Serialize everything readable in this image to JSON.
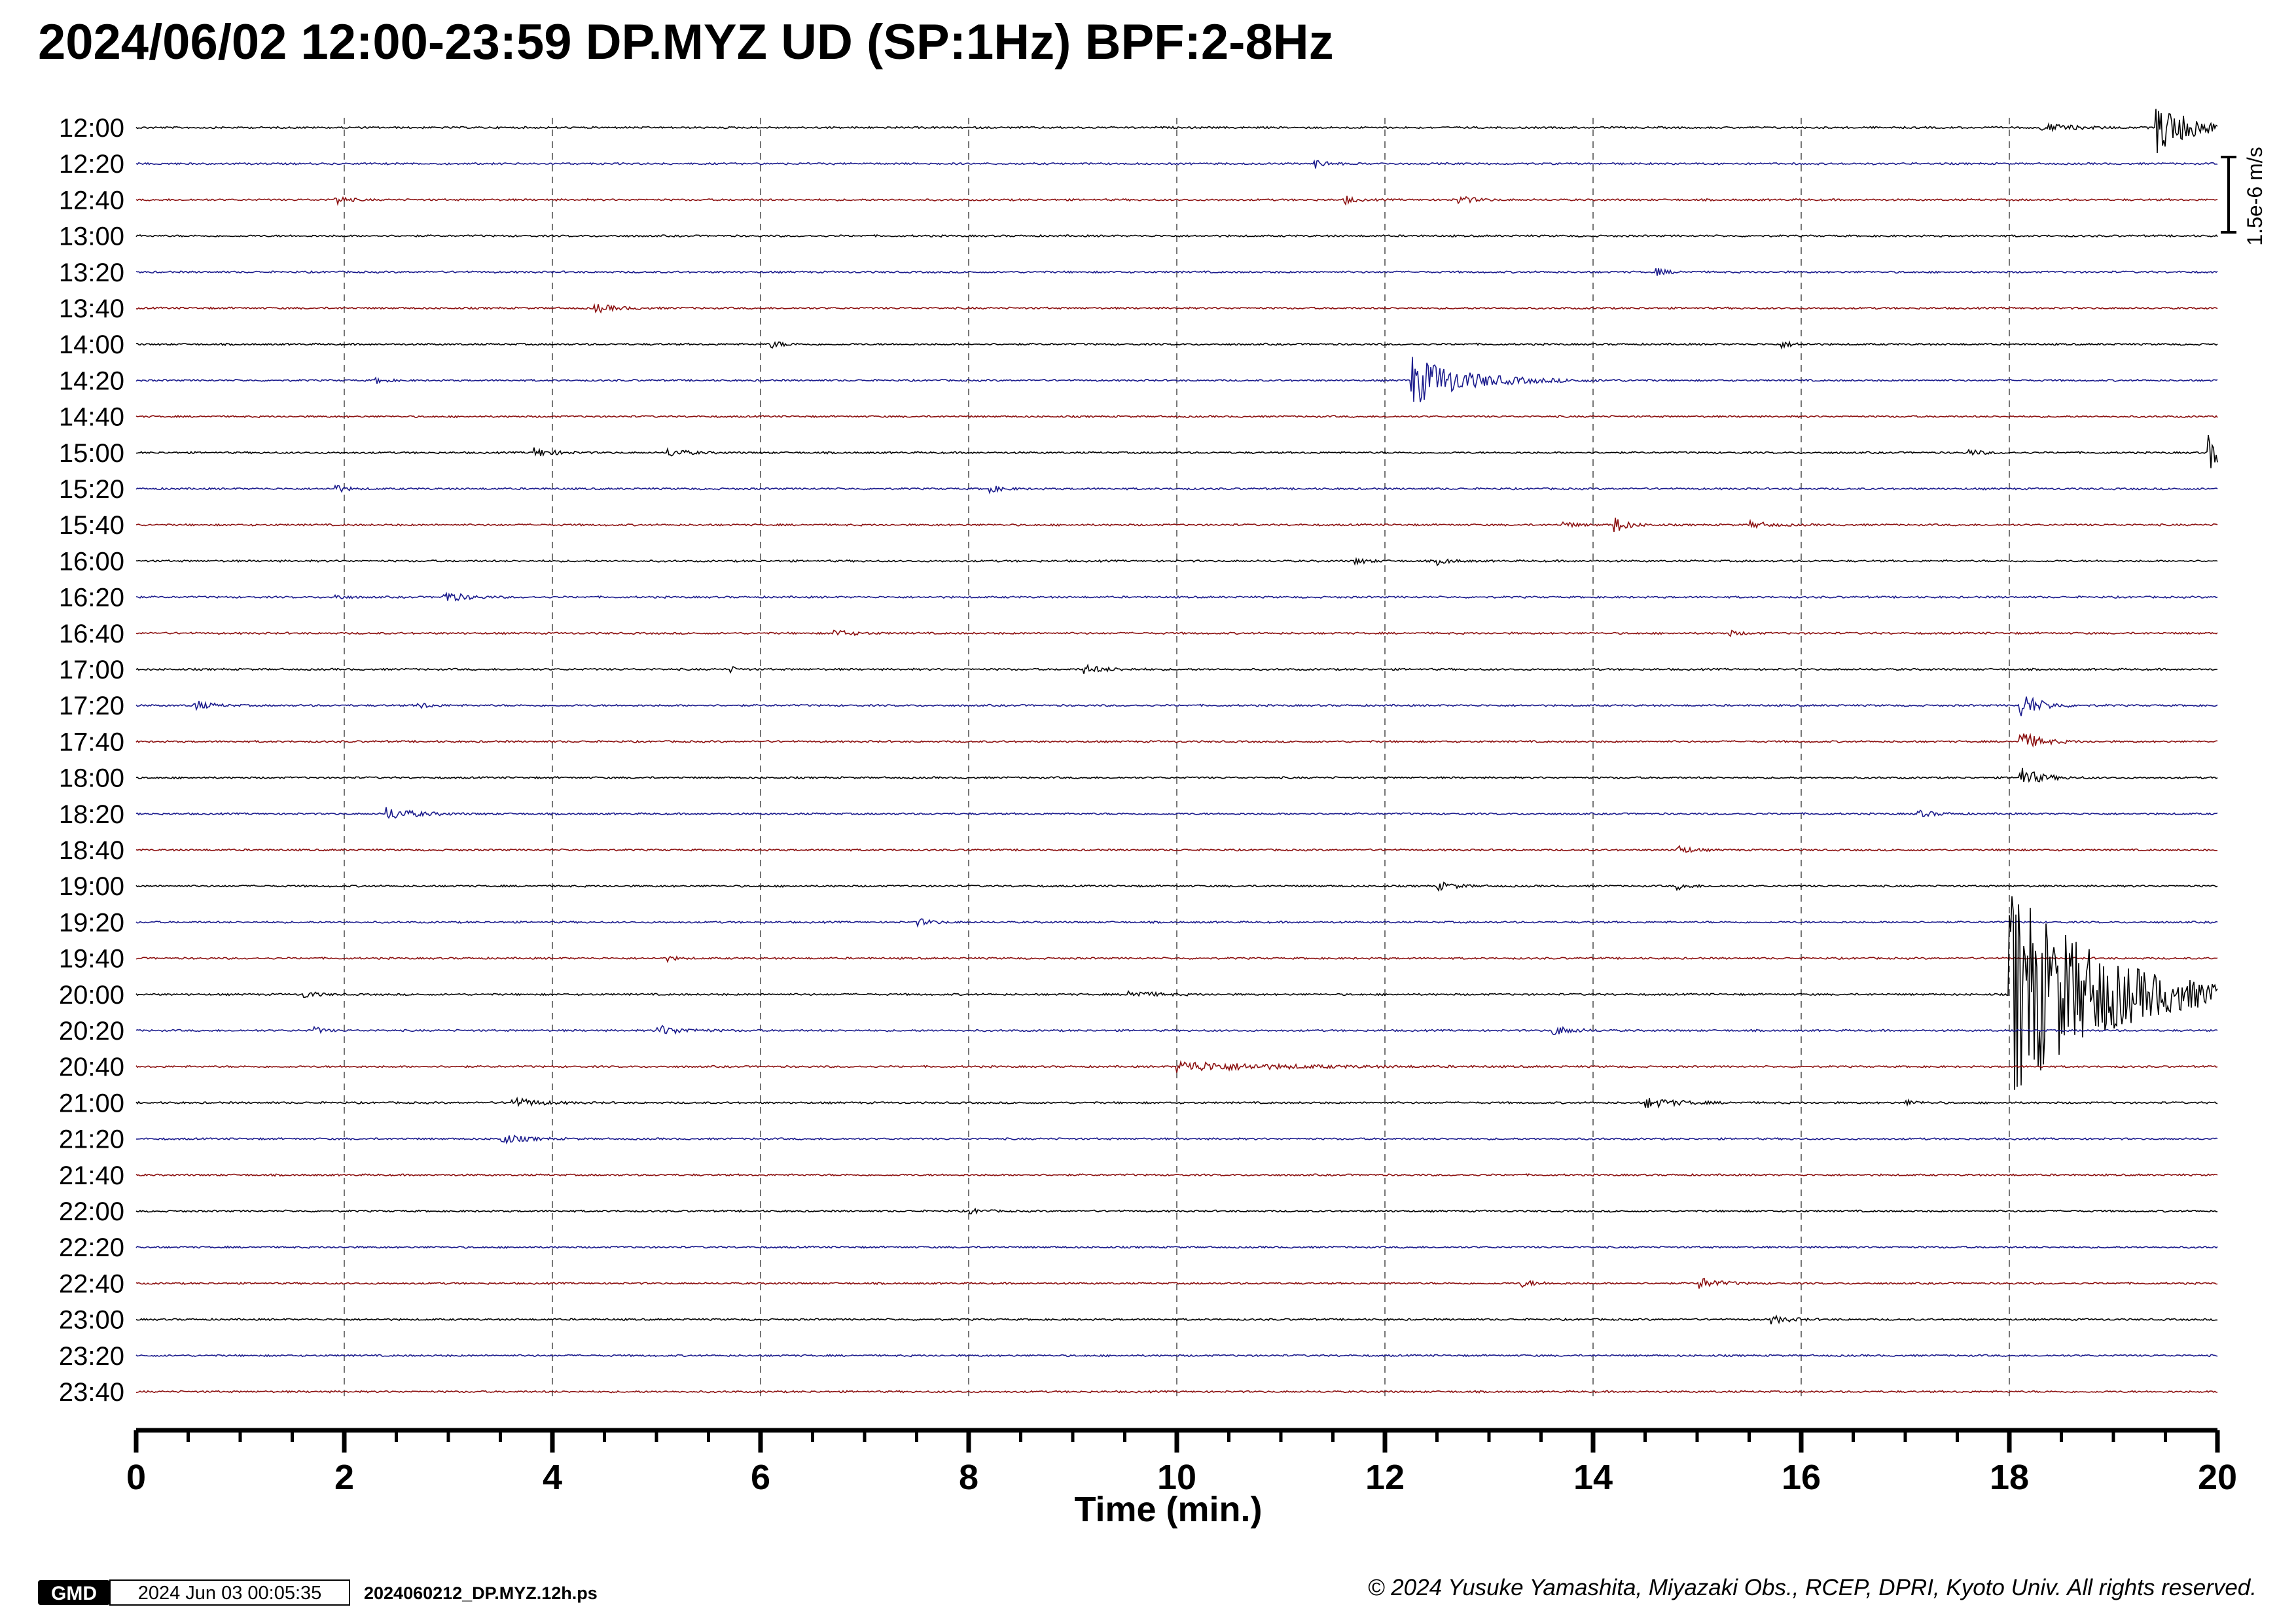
{
  "chart_data": {
    "type": "line",
    "title": "2024/06/02  12:00-23:59  DP.MYZ UD (SP:1Hz) BPF:2-8Hz",
    "xlabel": "Time (min.)",
    "ylabel": "",
    "xlim": [
      0,
      20
    ],
    "x_ticks": [
      "0",
      "2",
      "4",
      "6",
      "8",
      "10",
      "12",
      "14",
      "16",
      "18",
      "20"
    ],
    "grid": "vertical dashed at every 2 min",
    "scale_bar": "1.5e-6 m/s",
    "row_colors": [
      "#000000",
      "#1a1a8c",
      "#8b0f0f"
    ],
    "rows": [
      {
        "label": "12:00",
        "events": [
          {
            "t": 19.4,
            "amp": 0.75,
            "dur": 0.6
          },
          {
            "t": 18.3,
            "amp": 0.12,
            "dur": 0.5
          }
        ]
      },
      {
        "label": "12:20",
        "events": [
          {
            "t": 11.3,
            "amp": 0.15,
            "dur": 0.2
          }
        ]
      },
      {
        "label": "12:40",
        "events": [
          {
            "t": 1.9,
            "amp": 0.2,
            "dur": 0.15
          },
          {
            "t": 11.6,
            "amp": 0.15,
            "dur": 0.15
          },
          {
            "t": 12.7,
            "amp": 0.12,
            "dur": 0.25
          }
        ]
      },
      {
        "label": "13:00",
        "events": []
      },
      {
        "label": "13:20",
        "events": [
          {
            "t": 14.6,
            "amp": 0.1,
            "dur": 0.2
          }
        ]
      },
      {
        "label": "13:40",
        "events": [
          {
            "t": 4.4,
            "amp": 0.12,
            "dur": 0.35
          }
        ]
      },
      {
        "label": "14:00",
        "events": [
          {
            "t": 6.1,
            "amp": 0.1,
            "dur": 0.2
          },
          {
            "t": 15.8,
            "amp": 0.1,
            "dur": 0.2
          }
        ]
      },
      {
        "label": "14:20",
        "events": [
          {
            "t": 12.25,
            "amp": 0.75,
            "dur": 0.8
          },
          {
            "t": 2.3,
            "amp": 0.1,
            "dur": 0.15
          }
        ]
      },
      {
        "label": "14:40",
        "events": []
      },
      {
        "label": "15:00",
        "events": [
          {
            "t": 19.9,
            "amp": 0.55,
            "dur": 0.3
          },
          {
            "t": 3.8,
            "amp": 0.15,
            "dur": 0.3
          },
          {
            "t": 5.1,
            "amp": 0.12,
            "dur": 0.3
          },
          {
            "t": 17.6,
            "amp": 0.1,
            "dur": 0.2
          }
        ]
      },
      {
        "label": "15:20",
        "events": [
          {
            "t": 1.9,
            "amp": 0.15,
            "dur": 0.15
          },
          {
            "t": 8.2,
            "amp": 0.1,
            "dur": 0.2
          }
        ]
      },
      {
        "label": "15:40",
        "events": [
          {
            "t": 14.2,
            "amp": 0.25,
            "dur": 0.2
          },
          {
            "t": 13.7,
            "amp": 0.1,
            "dur": 0.2
          },
          {
            "t": 15.5,
            "amp": 0.1,
            "dur": 0.3
          }
        ]
      },
      {
        "label": "16:00",
        "events": [
          {
            "t": 11.7,
            "amp": 0.1,
            "dur": 0.2
          },
          {
            "t": 12.5,
            "amp": 0.1,
            "dur": 0.2
          }
        ]
      },
      {
        "label": "16:20",
        "events": [
          {
            "t": 2.95,
            "amp": 0.18,
            "dur": 0.3
          },
          {
            "t": 1.9,
            "amp": 0.1,
            "dur": 0.15
          }
        ]
      },
      {
        "label": "16:40",
        "events": [
          {
            "t": 6.7,
            "amp": 0.1,
            "dur": 0.3
          },
          {
            "t": 15.3,
            "amp": 0.08,
            "dur": 0.2
          }
        ]
      },
      {
        "label": "17:00",
        "events": [
          {
            "t": 9.1,
            "amp": 0.12,
            "dur": 0.35
          },
          {
            "t": 5.7,
            "amp": 0.1,
            "dur": 0.1
          }
        ]
      },
      {
        "label": "17:20",
        "events": [
          {
            "t": 0.55,
            "amp": 0.15,
            "dur": 0.25
          },
          {
            "t": 2.7,
            "amp": 0.1,
            "dur": 0.2
          },
          {
            "t": 18.1,
            "amp": 0.4,
            "dur": 0.3
          }
        ]
      },
      {
        "label": "17:40",
        "events": [
          {
            "t": 18.1,
            "amp": 0.3,
            "dur": 0.3
          }
        ]
      },
      {
        "label": "18:00",
        "events": [
          {
            "t": 18.1,
            "amp": 0.3,
            "dur": 0.3
          }
        ]
      },
      {
        "label": "18:20",
        "events": [
          {
            "t": 2.4,
            "amp": 0.18,
            "dur": 0.45
          },
          {
            "t": 17.1,
            "amp": 0.1,
            "dur": 0.3
          }
        ]
      },
      {
        "label": "18:40",
        "events": [
          {
            "t": 14.8,
            "amp": 0.15,
            "dur": 0.2
          }
        ]
      },
      {
        "label": "19:00",
        "events": [
          {
            "t": 12.5,
            "amp": 0.12,
            "dur": 0.3
          },
          {
            "t": 14.8,
            "amp": 0.1,
            "dur": 0.2
          }
        ]
      },
      {
        "label": "19:20",
        "events": [
          {
            "t": 7.5,
            "amp": 0.1,
            "dur": 0.25
          }
        ]
      },
      {
        "label": "19:40",
        "events": [
          {
            "t": 5.1,
            "amp": 0.08,
            "dur": 0.15
          }
        ]
      },
      {
        "label": "20:00",
        "events": [
          {
            "t": 18.0,
            "amp": 3.2,
            "dur": 1.5
          },
          {
            "t": 9.5,
            "amp": 0.12,
            "dur": 0.4
          },
          {
            "t": 1.6,
            "amp": 0.12,
            "dur": 0.2
          }
        ]
      },
      {
        "label": "20:20",
        "events": [
          {
            "t": 5.0,
            "amp": 0.15,
            "dur": 0.4
          },
          {
            "t": 13.6,
            "amp": 0.15,
            "dur": 0.3
          },
          {
            "t": 1.7,
            "amp": 0.12,
            "dur": 0.15
          }
        ]
      },
      {
        "label": "20:40",
        "events": [
          {
            "t": 10.0,
            "amp": 0.15,
            "dur": 1.5
          }
        ]
      },
      {
        "label": "21:00",
        "events": [
          {
            "t": 3.6,
            "amp": 0.15,
            "dur": 0.4
          },
          {
            "t": 14.5,
            "amp": 0.15,
            "dur": 0.5
          },
          {
            "t": 17.0,
            "amp": 0.08,
            "dur": 0.2
          }
        ]
      },
      {
        "label": "21:20",
        "events": [
          {
            "t": 3.5,
            "amp": 0.15,
            "dur": 0.35
          }
        ]
      },
      {
        "label": "21:40",
        "events": []
      },
      {
        "label": "22:00",
        "events": [
          {
            "t": 8.0,
            "amp": 0.08,
            "dur": 0.2
          }
        ]
      },
      {
        "label": "22:20",
        "events": []
      },
      {
        "label": "22:40",
        "events": [
          {
            "t": 15.0,
            "amp": 0.18,
            "dur": 0.3
          },
          {
            "t": 13.3,
            "amp": 0.1,
            "dur": 0.25
          }
        ]
      },
      {
        "label": "23:00",
        "events": [
          {
            "t": 15.7,
            "amp": 0.12,
            "dur": 0.3
          }
        ]
      },
      {
        "label": "23:20",
        "events": []
      },
      {
        "label": "23:40",
        "events": []
      }
    ]
  },
  "footer": {
    "logo": "GMD",
    "timestamp": "2024 Jun 03 00:05:35",
    "filename": "2024060212_DP.MYZ.12h.ps",
    "copyright": "© 2024 Yusuke Yamashita, Miyazaki Obs., RCEP, DPRI, Kyoto Univ. All rights reserved."
  }
}
